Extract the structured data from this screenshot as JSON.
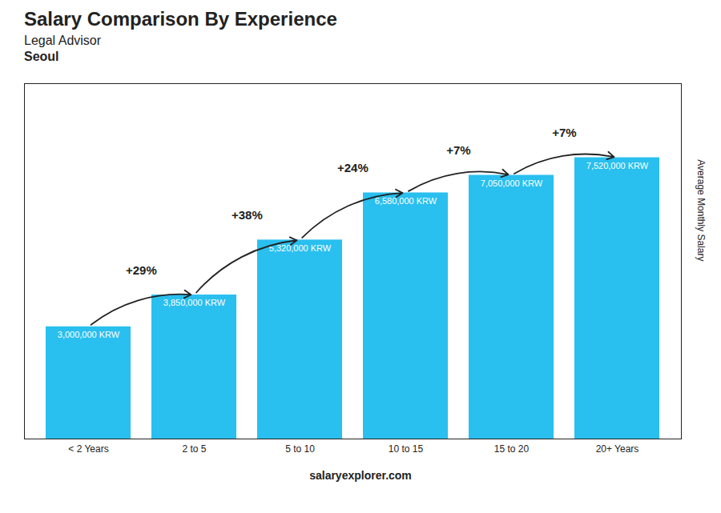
{
  "chart_data": {
    "type": "bar",
    "title": "Salary Comparison By Experience",
    "subtitle": "Legal Advisor",
    "ylabel": "Average Monthly Salary",
    "categories": [
      "< 2 Years",
      "2 to 5",
      "5 to 10",
      "10 to 15",
      "15 to 20",
      "20+ Years"
    ],
    "values": [
      3000000,
      3850000,
      5320000,
      6580000,
      7050000,
      7520000
    ],
    "value_labels": [
      "3,000,000 KRW",
      "3,850,000 KRW",
      "5,320,000 KRW",
      "6,580,000 KRW",
      "7,050,000 KRW",
      "7,520,000 KRW"
    ],
    "data_labels": true,
    "color": "#29BFEF",
    "ylim": [
      0,
      9500000
    ],
    "tick_labels": "x",
    "grid": false,
    "annotations": [
      {
        "text": "Seoul"
      },
      {
        "text": "salary"
      },
      {
        "text": "explorer.com"
      },
      {
        "text": "+29%",
        "from": "< 2 Years",
        "to": "2 to 5"
      },
      {
        "text": "+38%",
        "from": "2 to 5",
        "to": "5 to 10"
      },
      {
        "text": "+24%",
        "from": "5 to 10",
        "to": "10 to 15"
      },
      {
        "text": "+7%",
        "from": "10 to 15",
        "to": "15 to 20"
      },
      {
        "text": "+7%",
        "from": "15 to 20",
        "to": "20+ Years"
      }
    ]
  }
}
